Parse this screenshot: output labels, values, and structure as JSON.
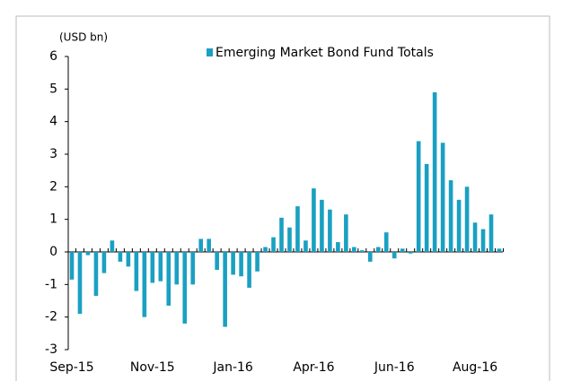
{
  "chart_data": {
    "type": "bar",
    "y_label": "(USD bn)",
    "series": [
      {
        "name": "Emerging Market Bond Fund Totals",
        "color": "#1aa0c2",
        "values": [
          -0.85,
          -1.9,
          -0.1,
          -1.35,
          -0.65,
          0.35,
          -0.3,
          -0.45,
          -1.2,
          -2.0,
          -0.95,
          -0.9,
          -1.65,
          -1.0,
          -2.2,
          -1.0,
          0.4,
          0.4,
          -0.55,
          -2.3,
          -0.7,
          -0.75,
          -1.1,
          -0.6,
          0.15,
          0.45,
          1.05,
          0.75,
          1.4,
          0.35,
          1.95,
          1.6,
          1.3,
          0.3,
          1.15,
          0.15,
          0.05,
          -0.3,
          0.15,
          0.6,
          -0.2,
          0.1,
          -0.05,
          3.4,
          2.7,
          4.9,
          3.35,
          2.2,
          1.6,
          2.0,
          0.9,
          0.7,
          1.15,
          0.1
        ]
      }
    ],
    "categories": [
      "Sep-15",
      null,
      null,
      null,
      null,
      null,
      null,
      null,
      null,
      null,
      "Nov-15",
      null,
      null,
      null,
      null,
      null,
      null,
      null,
      null,
      null,
      "Jan-16",
      null,
      null,
      null,
      null,
      null,
      null,
      null,
      null,
      null,
      "Apr-16",
      null,
      null,
      null,
      null,
      null,
      null,
      null,
      null,
      null,
      "Jun-16",
      null,
      null,
      null,
      null,
      null,
      null,
      null,
      null,
      null,
      "Aug-16",
      null,
      null,
      null
    ],
    "ylim": [
      -3,
      6
    ],
    "yticks": [
      -3,
      -2,
      -1,
      0,
      1,
      2,
      3,
      4,
      5,
      6
    ],
    "legend": "top"
  }
}
